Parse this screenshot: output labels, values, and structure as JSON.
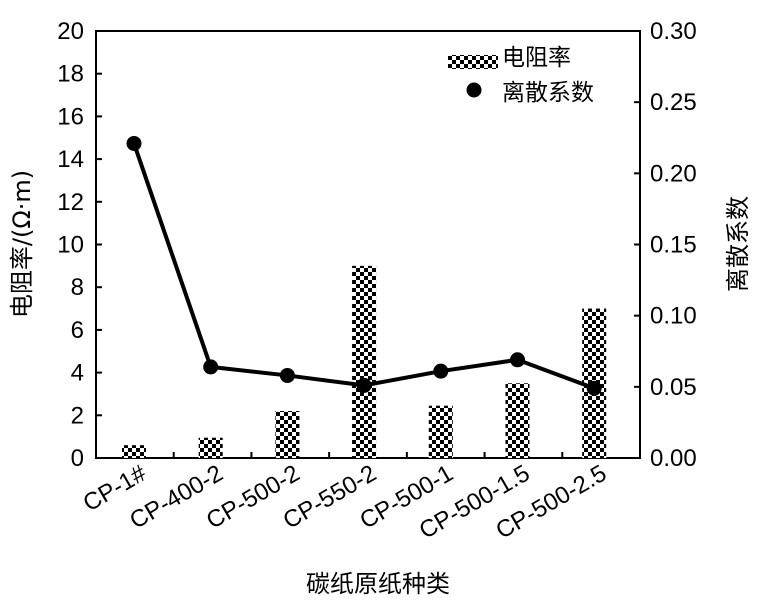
{
  "chart_data": {
    "type": "bar+line",
    "categories": [
      "CP-1#",
      "CP-400-2",
      "CP-500-2",
      "CP-550-2",
      "CP-500-1",
      "CP-500-1.5",
      "CP-500-2.5"
    ],
    "series": [
      {
        "name": "电阻率",
        "type": "bar",
        "axis": "left",
        "values": [
          0.6,
          0.95,
          2.2,
          9.0,
          2.45,
          3.5,
          7.0
        ]
      },
      {
        "name": "离散系数",
        "type": "line",
        "axis": "right",
        "values": [
          0.221,
          0.064,
          0.058,
          0.051,
          0.061,
          0.069,
          0.049
        ]
      }
    ],
    "xlabel": "碳纸原纸种类",
    "ylabel_left": "电阻率/(Ω·m)",
    "ylabel_right": "离散系数",
    "ylim_left": [
      0,
      20
    ],
    "yticks_left": [
      "0",
      "2",
      "4",
      "6",
      "8",
      "10",
      "12",
      "14",
      "16",
      "18",
      "20"
    ],
    "ylim_right": [
      0,
      0.3
    ],
    "yticks_right": [
      "0.00",
      "0.05",
      "0.10",
      "0.15",
      "0.20",
      "0.25",
      "0.30"
    ],
    "grid": false,
    "legend_placement": "top-right",
    "colors": {
      "bar_fill": "checkerboard-black",
      "line": "#000000",
      "marker": "#000000"
    }
  }
}
